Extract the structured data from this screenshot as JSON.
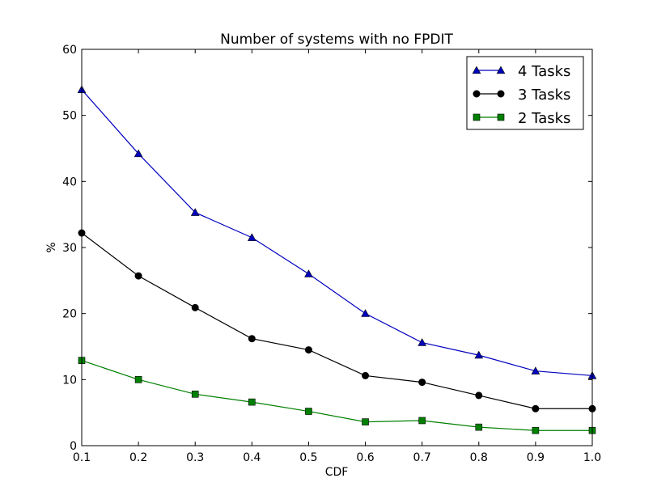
{
  "chart_data": {
    "type": "line",
    "title": "Number of systems with no FPDIT",
    "xlabel": "CDF",
    "ylabel": "%",
    "xlim": [
      0.1,
      1.0
    ],
    "ylim": [
      0,
      60
    ],
    "x_ticks": [
      "0.1",
      "0.2",
      "0.3",
      "0.4",
      "0.5",
      "0.6",
      "0.7",
      "0.8",
      "0.9",
      "1.0"
    ],
    "y_ticks": [
      "0",
      "10",
      "20",
      "30",
      "40",
      "50",
      "60"
    ],
    "grid": false,
    "legend_position": "top-right",
    "x": [
      0.1,
      0.2,
      0.3,
      0.4,
      0.5,
      0.6,
      0.7,
      0.8,
      0.9,
      1.0
    ],
    "series": [
      {
        "name": "4 Tasks",
        "color": "#0000bf",
        "marker": "triangle",
        "values": [
          53.9,
          44.2,
          35.3,
          31.5,
          26.0,
          20.0,
          15.6,
          13.7,
          11.3,
          10.6
        ]
      },
      {
        "name": "3 Tasks",
        "color": "#000000",
        "marker": "circle",
        "values": [
          32.2,
          25.7,
          20.9,
          16.2,
          14.5,
          10.6,
          9.6,
          7.6,
          5.6,
          5.6
        ]
      },
      {
        "name": "2 Tasks",
        "color": "#008000",
        "marker": "square",
        "values": [
          12.9,
          10.0,
          7.8,
          6.6,
          5.2,
          3.6,
          3.8,
          2.8,
          2.3,
          2.3
        ]
      }
    ]
  }
}
